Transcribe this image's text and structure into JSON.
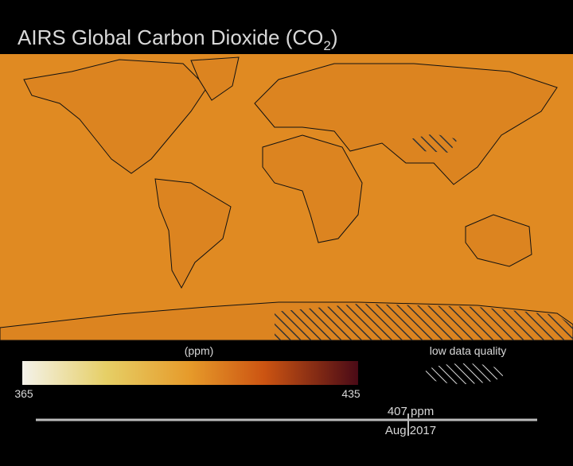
{
  "title": {
    "text": "AIRS Global Carbon Dioxide  (CO",
    "subscript": "2",
    "close": ")"
  },
  "colorbar": {
    "label": "(ppm)",
    "min": "365",
    "max": "435"
  },
  "legend": {
    "low_quality": "low data quality"
  },
  "timeline": {
    "value_label": "407 ppm",
    "date": "Aug 2017"
  }
}
